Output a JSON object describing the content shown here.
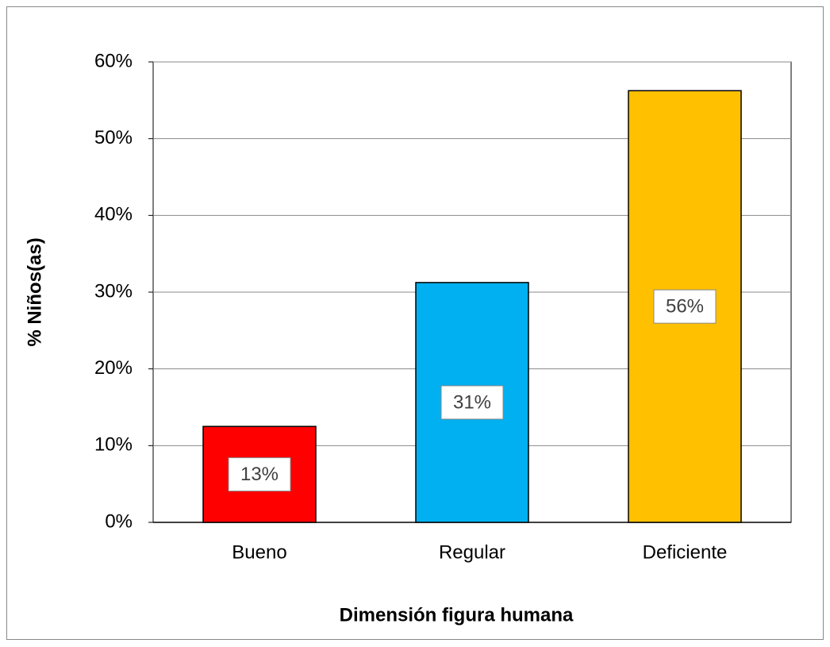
{
  "chart_data": {
    "type": "bar",
    "categories": [
      "Bueno",
      "Regular",
      "Deficiente"
    ],
    "values": [
      12.5,
      31.25,
      56.25
    ],
    "value_labels": [
      "13%",
      "31%",
      "56%"
    ],
    "colors": [
      "#ff0000",
      "#00b0f0",
      "#ffc000"
    ],
    "xlabel": "Dimensión figura humana",
    "ylabel": "% Niños(as)",
    "ylim": [
      0,
      60
    ],
    "yticks": [
      {
        "value": 0,
        "label": "0%"
      },
      {
        "value": 10,
        "label": "10%"
      },
      {
        "value": 20,
        "label": "20%"
      },
      {
        "value": 30,
        "label": "30%"
      },
      {
        "value": 40,
        "label": "40%"
      },
      {
        "value": 50,
        "label": "50%"
      },
      {
        "value": 60,
        "label": "60%"
      }
    ],
    "grid": true
  }
}
